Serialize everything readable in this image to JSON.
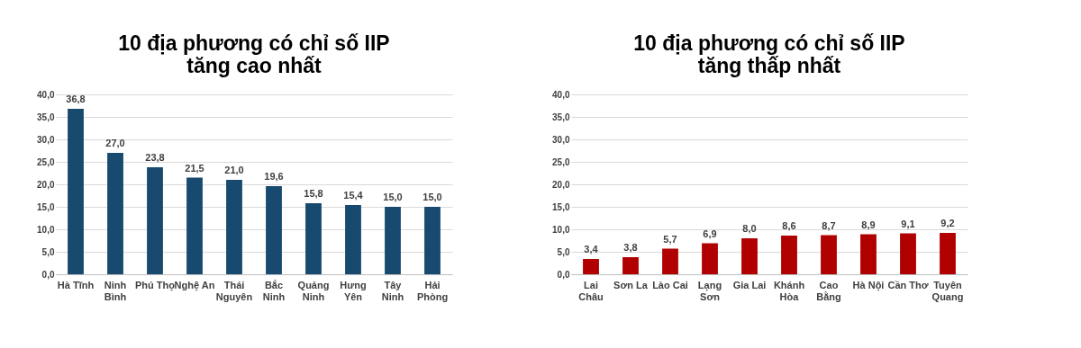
{
  "chart_data": [
    {
      "type": "bar",
      "title": "10 địa phương có chỉ số IIP\ntăng cao nhất",
      "categories": [
        "Hà Tĩnh",
        "Ninh Bình",
        "Phú Thọ",
        "Nghệ An",
        "Thái Nguyên",
        "Bắc Ninh",
        "Quảng Ninh",
        "Hưng Yên",
        "Tây Ninh",
        "Hải Phòng"
      ],
      "values": [
        36.8,
        27.0,
        23.8,
        21.5,
        21.0,
        19.6,
        15.8,
        15.4,
        15.0,
        15.0
      ],
      "value_labels": [
        "36,8",
        "27,0",
        "23,8",
        "21,5",
        "21,0",
        "19,6",
        "15,8",
        "15,4",
        "15,0",
        "15,0"
      ],
      "color": "#174a6e",
      "ylim": [
        0,
        40
      ],
      "yticks": [
        {
          "value": 0,
          "label": "0,0"
        },
        {
          "value": 5,
          "label": "5,0"
        },
        {
          "value": 10,
          "label": "10,0"
        },
        {
          "value": 15,
          "label": "15,0"
        },
        {
          "value": 20,
          "label": "20,0"
        },
        {
          "value": 25,
          "label": "25,0"
        },
        {
          "value": 30,
          "label": "30,0"
        },
        {
          "value": 35,
          "label": "35,0"
        },
        {
          "value": 40,
          "label": "40,0"
        }
      ],
      "grid": "y"
    },
    {
      "type": "bar",
      "title": "10 địa phương có chỉ số IIP\ntăng thấp nhất",
      "categories": [
        "Lai Châu",
        "Sơn La",
        "Lào Cai",
        "Lạng Sơn",
        "Gia Lai",
        "Khánh Hòa",
        "Cao Bằng",
        "Hà Nội",
        "Cần Thơ",
        "Tuyên Quang"
      ],
      "values": [
        3.4,
        3.8,
        5.7,
        6.9,
        8.0,
        8.6,
        8.7,
        8.9,
        9.1,
        9.2
      ],
      "value_labels": [
        "3,4",
        "3,8",
        "5,7",
        "6,9",
        "8,0",
        "8,6",
        "8,7",
        "8,9",
        "9,1",
        "9,2"
      ],
      "color": "#b00000",
      "ylim": [
        0,
        40
      ],
      "yticks": [
        {
          "value": 0,
          "label": "0,0"
        },
        {
          "value": 5,
          "label": "5,0"
        },
        {
          "value": 10,
          "label": "10,0"
        },
        {
          "value": 15,
          "label": "15,0"
        },
        {
          "value": 20,
          "label": "20,0"
        },
        {
          "value": 25,
          "label": "25,0"
        },
        {
          "value": 30,
          "label": "30,0"
        },
        {
          "value": 35,
          "label": "35,0"
        },
        {
          "value": 40,
          "label": "40,0"
        }
      ],
      "grid": "y"
    }
  ]
}
